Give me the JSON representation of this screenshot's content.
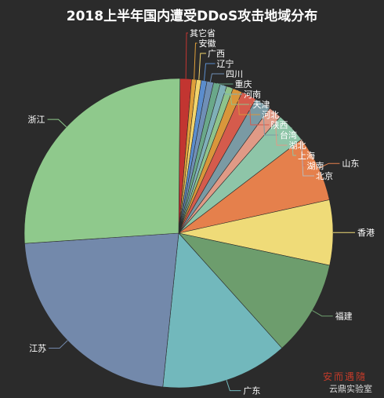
{
  "chart_data": {
    "type": "pie",
    "title": "2018上半年国内遭受DDoS攻击地域分布",
    "slices": [
      {
        "label": "其它省",
        "value": 1.2,
        "color": "#c23531"
      },
      {
        "label": "安徽",
        "value": 0.5,
        "color": "#e0a03a"
      },
      {
        "label": "广西",
        "value": 0.5,
        "color": "#f2d46b"
      },
      {
        "label": "辽宁",
        "value": 0.6,
        "color": "#5b8dcd"
      },
      {
        "label": "四川",
        "value": 0.7,
        "color": "#6f8fb6"
      },
      {
        "label": "重庆",
        "value": 0.7,
        "color": "#6aa88a"
      },
      {
        "label": "河南",
        "value": 0.7,
        "color": "#7fb0b8"
      },
      {
        "label": "天津",
        "value": 0.7,
        "color": "#8fc38b"
      },
      {
        "label": "河北",
        "value": 1.0,
        "color": "#d9963b"
      },
      {
        "label": "陕西",
        "value": 1.6,
        "color": "#d55b4c"
      },
      {
        "label": "台湾",
        "value": 1.7,
        "color": "#7a9aa4"
      },
      {
        "label": "湖北",
        "value": 1.4,
        "color": "#e09a86"
      },
      {
        "label": "上海",
        "value": 3.2,
        "color": "#8ec5a8"
      },
      {
        "label": "湖南",
        "value": 0,
        "color": "#d46a5b"
      },
      {
        "label": "北京",
        "value": 0,
        "color": "#b9b9b9"
      },
      {
        "label": "山东",
        "value": 6.9,
        "color": "#e5804c"
      },
      {
        "label": "香港",
        "value": 6.8,
        "color": "#efdb78"
      },
      {
        "label": "福建",
        "value": 10.0,
        "color": "#6d9d6d"
      },
      {
        "label": "广东",
        "value": 13.3,
        "color": "#72b8bc"
      },
      {
        "label": "江苏",
        "value": 22.3,
        "color": "#7389ab"
      },
      {
        "label": "浙江",
        "value": 26.2,
        "color": "#8fc98c"
      }
    ],
    "legend": "none",
    "label_color": "#ffffff"
  },
  "background": "#2b2b2b",
  "watermark": {
    "line1": "安而遇隨",
    "line2": "云鼎实验室"
  }
}
